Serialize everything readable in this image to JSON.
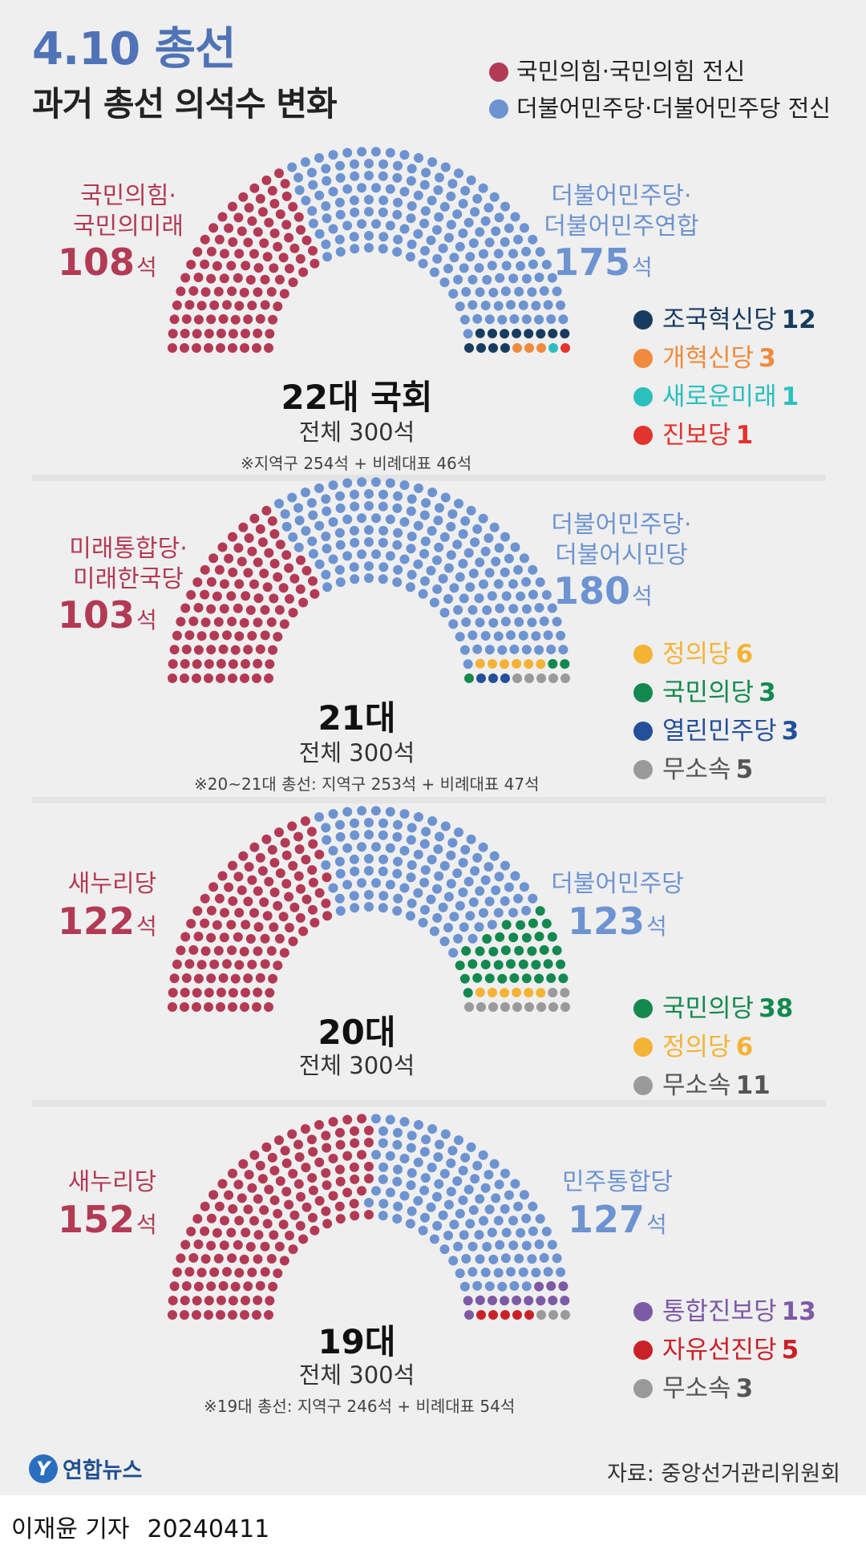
{
  "header": {
    "title": "4.10 총선",
    "subtitle": "과거 총선 의석수 변화",
    "legend": [
      {
        "label": "국민의힘·국민의힘 전신",
        "color": "#b33a55"
      },
      {
        "label": "더불어민주당·더불어민주당 전신",
        "color": "#6d93d1"
      }
    ]
  },
  "chart_data": [
    {
      "type": "parliament",
      "center_title": "22대 국회",
      "total_label": "전체 300석",
      "note": "※지역구 254석 + 비례대표 46석",
      "conservative": {
        "label": [
          "국민의힘·",
          "국민의미래"
        ],
        "seats": 108,
        "unit": "석",
        "color": "#b33a55"
      },
      "democratic": {
        "label": [
          "더불어민주당·",
          "더불어민주연합"
        ],
        "seats": 175,
        "unit": "석",
        "color": "#6d93d1"
      },
      "others": [
        {
          "name": "조국혁신당",
          "seats": 12,
          "color": "#183c60"
        },
        {
          "name": "개혁신당",
          "seats": 3,
          "color": "#f08a3c"
        },
        {
          "name": "새로운미래",
          "seats": 1,
          "color": "#2bbfbf"
        },
        {
          "name": "진보당",
          "seats": 1,
          "color": "#e2342d"
        }
      ]
    },
    {
      "type": "parliament",
      "center_title": "21대",
      "total_label": "전체 300석",
      "note": "※20~21대 총선: 지역구 253석 + 비례대표 47석",
      "conservative": {
        "label": [
          "미래통합당·",
          "미래한국당"
        ],
        "seats": 103,
        "unit": "석",
        "color": "#b33a55"
      },
      "democratic": {
        "label": [
          "더불어민주당·",
          "더불어시민당"
        ],
        "seats": 180,
        "unit": "석",
        "color": "#6d93d1"
      },
      "others": [
        {
          "name": "정의당",
          "seats": 6,
          "color": "#f5b335"
        },
        {
          "name": "국민의당",
          "seats": 3,
          "color": "#13894f"
        },
        {
          "name": "열린민주당",
          "seats": 3,
          "color": "#244f9a"
        },
        {
          "name": "무소속",
          "seats": 5,
          "color": "#9a9a9a"
        }
      ]
    },
    {
      "type": "parliament",
      "center_title": "20대",
      "total_label": "전체 300석",
      "note": "",
      "conservative": {
        "label": [
          "새누리당"
        ],
        "seats": 122,
        "unit": "석",
        "color": "#b33a55"
      },
      "democratic": {
        "label": [
          "더불어민주당"
        ],
        "seats": 123,
        "unit": "석",
        "color": "#6d93d1"
      },
      "others": [
        {
          "name": "국민의당",
          "seats": 38,
          "color": "#13894f"
        },
        {
          "name": "정의당",
          "seats": 6,
          "color": "#f5b335"
        },
        {
          "name": "무소속",
          "seats": 11,
          "color": "#9a9a9a"
        }
      ]
    },
    {
      "type": "parliament",
      "center_title": "19대",
      "total_label": "전체 300석",
      "note": "※19대 총선: 지역구 246석 + 비례대표 54석",
      "conservative": {
        "label": [
          "새누리당"
        ],
        "seats": 152,
        "unit": "석",
        "color": "#b33a55"
      },
      "democratic": {
        "label": [
          "민주통합당"
        ],
        "seats": 127,
        "unit": "석",
        "color": "#6d93d1"
      },
      "others": [
        {
          "name": "통합진보당",
          "seats": 13,
          "color": "#7d5aa6"
        },
        {
          "name": "자유선진당",
          "seats": 5,
          "color": "#c92128"
        },
        {
          "name": "무소속",
          "seats": 3,
          "color": "#9a9a9a"
        }
      ]
    }
  ],
  "footer": {
    "logo_mark": "Y",
    "logo_text": "연합뉴스",
    "source": "자료: 중앙선거관리위원회",
    "byline_name": "이재윤 기자",
    "byline_date": "20240411"
  }
}
